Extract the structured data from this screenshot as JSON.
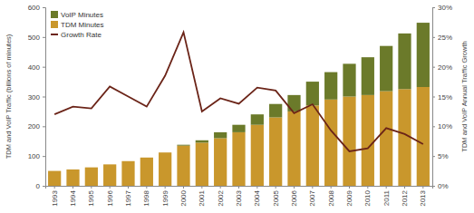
{
  "chart_data": {
    "type": "bar",
    "stacked": true,
    "grid": false,
    "legend": "top-left",
    "y_label": "TDM and VoIP Traffic (billions of minutes)",
    "y2_label": "TDM and VoIP Annual Traffic Growth",
    "categories": [
      "1993",
      "1994",
      "1995",
      "1996",
      "1997",
      "1998",
      "1999",
      "2000",
      "2001",
      "2002",
      "2003",
      "2004",
      "2005",
      "2006",
      "2007",
      "2008",
      "2009",
      "2010",
      "2011",
      "2012",
      "2013"
    ],
    "ylim": [
      0,
      600
    ],
    "yticks": [
      0,
      100,
      200,
      300,
      400,
      500,
      600
    ],
    "y2lim": [
      0,
      30
    ],
    "y2ticks": [
      {
        "value": 0,
        "label": "0%"
      },
      {
        "value": 5,
        "label": "5%"
      },
      {
        "value": 10,
        "label": "10%"
      },
      {
        "value": 15,
        "label": "15%"
      },
      {
        "value": 20,
        "label": "20%"
      },
      {
        "value": 25,
        "label": "25%"
      },
      {
        "value": 30,
        "label": "30%"
      }
    ],
    "series": [
      {
        "name": "TDM Minutes",
        "color": "#c9972c",
        "values": [
          50,
          55,
          62,
          72,
          83,
          95,
          112,
          135,
          145,
          160,
          180,
          205,
          230,
          250,
          270,
          290,
          300,
          305,
          318,
          325,
          332
        ]
      },
      {
        "name": "VoIP Minutes",
        "color": "#6b7a2a",
        "values": [
          0,
          0,
          0,
          0,
          0,
          0,
          0,
          3,
          8,
          20,
          25,
          35,
          45,
          55,
          80,
          92,
          110,
          127,
          152,
          187,
          216
        ]
      },
      {
        "name": "Growth Rate",
        "color": "#6b2418",
        "type": "line",
        "axis": "y2",
        "line_style": "solid",
        "values": [
          12,
          13.3,
          13,
          16.7,
          15,
          13.3,
          18.5,
          25.8,
          12.5,
          14.7,
          13.8,
          16.5,
          16,
          12.2,
          13.7,
          9.3,
          5.8,
          6.3,
          9.7,
          8.7,
          7
        ]
      }
    ]
  }
}
